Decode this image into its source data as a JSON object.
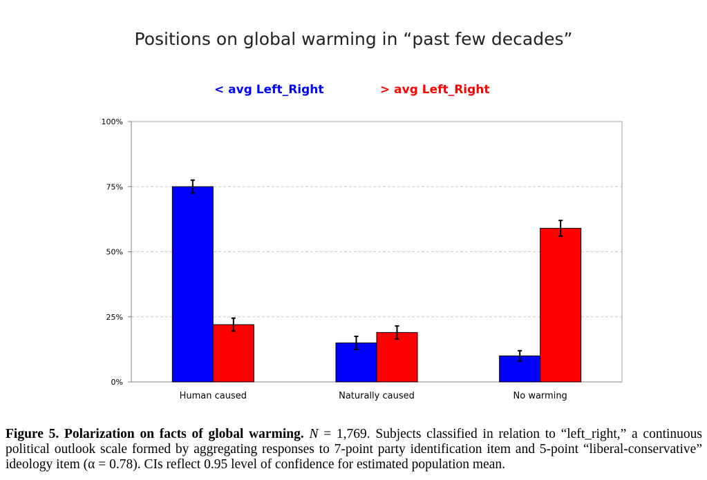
{
  "chart_data": {
    "type": "bar",
    "title": "Positions on global warming in “past few decades”",
    "categories": [
      "Human caused",
      "Naturally caused",
      "No warming"
    ],
    "series": [
      {
        "name": "< avg Left_Right",
        "color": "#0000ff",
        "values": [
          75,
          15,
          10
        ],
        "err_low": [
          72.5,
          12.5,
          8
        ],
        "err_high": [
          77.5,
          17.5,
          12
        ]
      },
      {
        "name": "> avg Left_Right",
        "color": "#ff0000",
        "values": [
          22,
          19,
          59
        ],
        "err_low": [
          19.5,
          16.5,
          56
        ],
        "err_high": [
          24.5,
          21.5,
          62
        ]
      }
    ],
    "yticks": [
      "0%",
      "25%",
      "50%",
      "75%",
      "100%"
    ],
    "ytick_values": [
      0,
      25,
      50,
      75,
      100
    ],
    "ylim": [
      0,
      100
    ],
    "grid": true,
    "legend_position": "top"
  },
  "caption": {
    "label": "Figure 5. Polarization on facts of global warming.",
    "n_symbol": "N",
    "n_text": " = 1,769. Subjects classified in relation to “left_right,” a continuous political outlook scale formed by aggregating responses to 7-point party identification item and 5-point “liberal-conservative” ideology item (α = 0.78). CIs reflect 0.95 level of confidence for estimated population mean."
  }
}
